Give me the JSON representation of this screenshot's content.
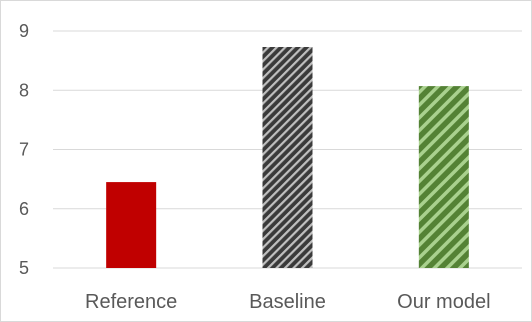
{
  "chart_data": {
    "type": "bar",
    "title": "",
    "xlabel": "",
    "ylabel": "",
    "categories": [
      "Reference",
      "Baseline",
      "Our model"
    ],
    "values": [
      6.45,
      8.73,
      8.07
    ],
    "ylim": [
      5,
      9
    ],
    "yticks": [
      5,
      6,
      7,
      8,
      9
    ],
    "grid": true,
    "legend": "none",
    "bar_styles": [
      {
        "fill": "#c00000",
        "pattern": "solid"
      },
      {
        "fill": "#3a3a3a",
        "pattern": "diagonal-stripes",
        "stripe": "#bfbfbf"
      },
      {
        "fill": "#548235",
        "pattern": "diagonal-stripes",
        "stripe": "#a9d18e"
      }
    ],
    "gridline_color": "#d9d9d9",
    "text_color": "#595959"
  }
}
